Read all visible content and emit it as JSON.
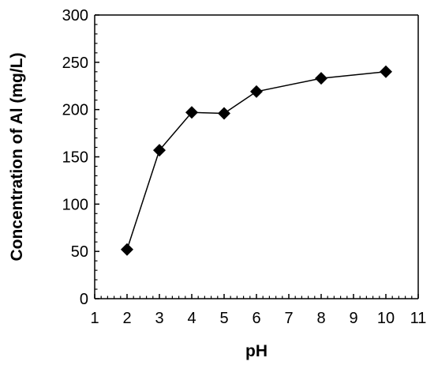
{
  "chart_data": {
    "type": "scatter",
    "title": "",
    "xlabel": "pH",
    "ylabel": "Concentration of Al (mg/L)",
    "xlim": [
      1,
      11
    ],
    "ylim": [
      0,
      300
    ],
    "x_ticks": [
      "1",
      "2",
      "3",
      "4",
      "5",
      "6",
      "7",
      "8",
      "9",
      "10",
      "11"
    ],
    "y_ticks": [
      "0",
      "50",
      "100",
      "150",
      "200",
      "250",
      "300"
    ],
    "grid": false,
    "legend": "none",
    "marker": "diamond",
    "line": true,
    "color": "#000000",
    "series": [
      {
        "x": [
          2,
          3,
          4,
          5,
          6,
          8,
          10
        ],
        "y": [
          52,
          157,
          197,
          196,
          219,
          233,
          240
        ]
      }
    ]
  }
}
